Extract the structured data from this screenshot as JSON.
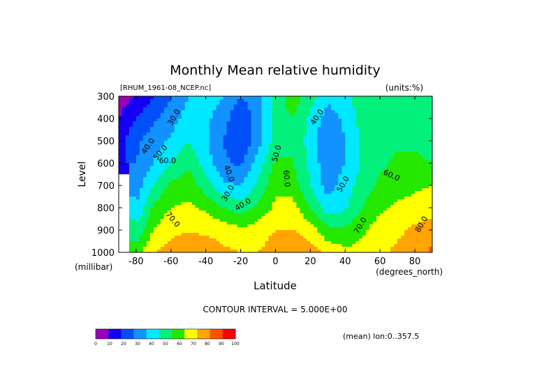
{
  "chart_data": {
    "type": "heatmap",
    "title": "Monthly Mean relative humidity",
    "dataset_label": "[RHUM_1961-08_NCEP.nc]",
    "units_label": "(units:%)",
    "xlabel": "Latitude",
    "x_units": "(degrees_north)",
    "ylabel": "Level",
    "y_units": "(millibar)",
    "x_ticks": [
      "-80",
      "-60",
      "-40",
      "-20",
      "0",
      "20",
      "40",
      "60",
      "80"
    ],
    "x_tick_values": [
      -80,
      -60,
      -40,
      -20,
      0,
      20,
      40,
      60,
      80
    ],
    "y_ticks": [
      "300",
      "400",
      "500",
      "600",
      "700",
      "800",
      "900",
      "1000"
    ],
    "y_tick_values": [
      300,
      400,
      500,
      600,
      700,
      800,
      900,
      1000
    ],
    "xlim": [
      -90,
      90
    ],
    "ylim": [
      1000,
      300
    ],
    "levels": [
      1000,
      900,
      800,
      700,
      600,
      500,
      400,
      300
    ],
    "latitudes": [
      -90,
      -80,
      -70,
      -60,
      -50,
      -40,
      -30,
      -20,
      -10,
      0,
      10,
      20,
      30,
      40,
      50,
      60,
      70,
      80,
      90
    ],
    "values": [
      [
        null,
        65,
        80,
        83,
        88,
        86,
        82,
        80,
        80,
        85,
        88,
        84,
        78,
        72,
        74,
        78,
        82,
        86,
        92
      ],
      [
        null,
        52,
        70,
        78,
        79,
        78,
        76,
        72,
        75,
        80,
        80,
        75,
        62,
        62,
        68,
        75,
        78,
        82,
        85
      ],
      [
        null,
        40,
        62,
        70,
        72,
        68,
        60,
        55,
        62,
        72,
        74,
        60,
        45,
        48,
        60,
        68,
        72,
        74,
        76
      ],
      [
        null,
        35,
        50,
        62,
        66,
        55,
        42,
        40,
        52,
        68,
        65,
        50,
        35,
        45,
        55,
        62,
        65,
        68,
        70
      ],
      [
        10,
        30,
        40,
        50,
        58,
        45,
        32,
        28,
        45,
        62,
        60,
        48,
        32,
        40,
        52,
        58,
        62,
        62,
        60
      ],
      [
        15,
        28,
        35,
        42,
        50,
        42,
        30,
        20,
        35,
        55,
        60,
        45,
        30,
        40,
        52,
        58,
        58,
        58,
        55
      ],
      [
        10,
        20,
        28,
        35,
        45,
        42,
        35,
        20,
        35,
        55,
        60,
        48,
        35,
        42,
        55,
        58,
        55,
        55,
        52
      ],
      [
        5,
        10,
        20,
        30,
        40,
        45,
        40,
        30,
        38,
        55,
        65,
        55,
        42,
        48,
        55,
        60,
        58,
        55,
        52
      ]
    ],
    "contour_labels": [
      "30.0",
      "40.0",
      "50.0",
      "40.0",
      "60.0",
      "70.0",
      "30.0",
      "40.0",
      "50.0",
      "60.0",
      "40.0",
      "50.0",
      "70.0",
      "60.0",
      "80.0"
    ],
    "colorbar": {
      "ticks": [
        "0",
        "10",
        "20",
        "30",
        "40",
        "50",
        "60",
        "70",
        "80",
        "90",
        "100"
      ],
      "colors": [
        "#9c00b8",
        "#1400f4",
        "#0050f8",
        "#1292ff",
        "#00e8ff",
        "#04f07c",
        "#24e800",
        "#ffff00",
        "#ffa400",
        "#fe5200",
        "#ff0000"
      ]
    },
    "contour_interval_text": "CONTOUR INTERVAL = 5.000E+00",
    "mean_text": "(mean) lon:0..357.5",
    "grid": false,
    "legend": "bottom-left colorbar"
  }
}
